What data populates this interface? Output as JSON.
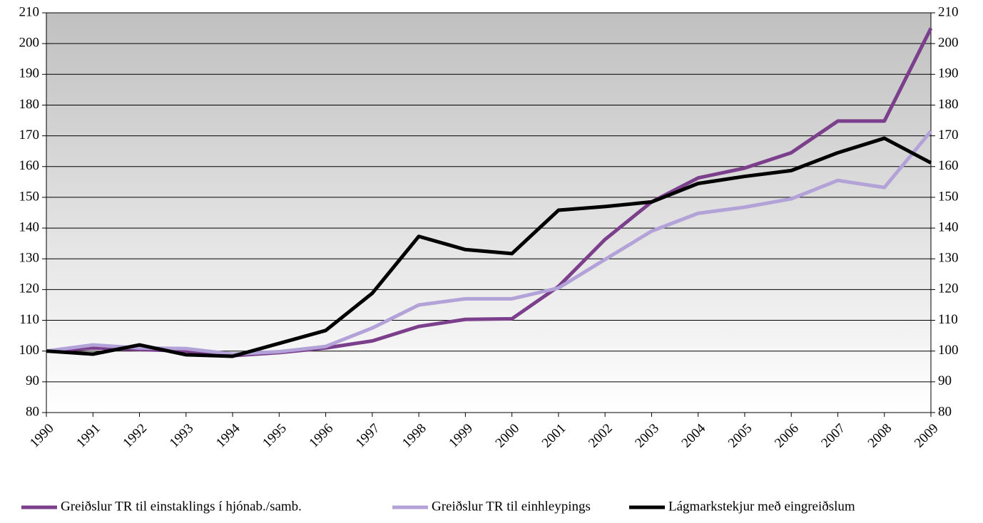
{
  "chart_data": {
    "type": "line",
    "categories": [
      "1990",
      "1991",
      "1992",
      "1993",
      "1994",
      "1995",
      "1996",
      "1997",
      "1998",
      "1999",
      "2000",
      "2001",
      "2002",
      "2003",
      "2004",
      "2005",
      "2006",
      "2007",
      "2008",
      "2009"
    ],
    "series": [
      {
        "name": "Greiðslur TR til einstaklings í hjónab./samb.",
        "color": "#7b3f8c",
        "values": [
          100,
          101,
          100.5,
          100,
          98.5,
          99.5,
          101,
          103.3,
          108,
          110.3,
          110.5,
          121,
          136.3,
          148.5,
          156.3,
          159.5,
          164.5,
          174.8,
          174.8,
          205
        ]
      },
      {
        "name": "Greiðslur TR til einhleypings",
        "color": "#b3a2d8",
        "values": [
          100,
          102,
          101,
          100.8,
          99,
          99.8,
          101.5,
          107.5,
          115,
          117,
          117,
          120.5,
          129.8,
          139,
          144.8,
          146.8,
          149.5,
          155.5,
          153.2,
          171.5
        ]
      },
      {
        "name": "Lágmarkstekjur með eingreiðslum",
        "color": "#000000",
        "values": [
          100,
          99,
          102,
          98.8,
          98.3,
          102.5,
          106.7,
          118.8,
          137.3,
          133,
          131.7,
          145.8,
          147,
          148.5,
          154.5,
          156.8,
          158.7,
          164.5,
          169.2,
          161.2
        ]
      }
    ],
    "ylim": [
      80,
      210
    ],
    "yticks": [
      80,
      90,
      100,
      110,
      120,
      130,
      140,
      150,
      160,
      170,
      180,
      190,
      200,
      210
    ],
    "y2lim": [
      80,
      210
    ],
    "y2ticks": [
      80,
      90,
      100,
      110,
      120,
      130,
      140,
      150,
      160,
      170,
      180,
      190,
      200,
      210
    ],
    "grid": true,
    "legend": "bottom"
  }
}
